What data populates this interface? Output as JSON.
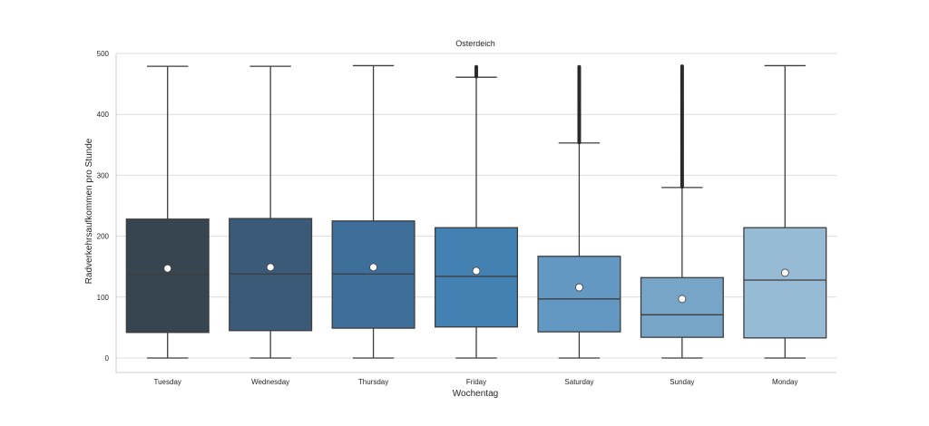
{
  "chart_data": {
    "type": "box",
    "title": "Osterdeich",
    "xlabel": "Wochentag",
    "ylabel": "Radverkehrsaufkommen pro Stunde",
    "ylim": [
      -25,
      500
    ],
    "yticks": [
      0,
      100,
      200,
      300,
      400,
      500
    ],
    "ytick_labels": [
      "0",
      "100",
      "200",
      "300",
      "400",
      "500"
    ],
    "grid": true,
    "categories": [
      "Tuesday",
      "Wednesday",
      "Thursday",
      "Friday",
      "Saturday",
      "Sunday",
      "Monday"
    ],
    "colors": [
      "#36454f",
      "#3a5a78",
      "#3e6f9b",
      "#4481b3",
      "#6298c1",
      "#76a5c8",
      "#97bad5"
    ],
    "boxes": [
      {
        "whislo": 0,
        "q1": 42,
        "med": 137,
        "q3": 228,
        "whishi": 479,
        "mean": 147,
        "fliers_range": null
      },
      {
        "whislo": 0,
        "q1": 45,
        "med": 138,
        "q3": 229,
        "whishi": 479,
        "mean": 149,
        "fliers_range": null
      },
      {
        "whislo": 0,
        "q1": 49,
        "med": 138,
        "q3": 225,
        "whishi": 480,
        "mean": 149,
        "fliers_range": null
      },
      {
        "whislo": 0,
        "q1": 51,
        "med": 134,
        "q3": 214,
        "whishi": 461,
        "mean": 143,
        "fliers_range": [
          462,
          479
        ]
      },
      {
        "whislo": 0,
        "q1": 43,
        "med": 97,
        "q3": 167,
        "whishi": 353,
        "mean": 116,
        "fliers_range": [
          354,
          479
        ]
      },
      {
        "whislo": 0,
        "q1": 34,
        "med": 71,
        "q3": 132,
        "whishi": 280,
        "mean": 97,
        "fliers_range": [
          281,
          479
        ]
      },
      {
        "whislo": 0,
        "q1": 33,
        "med": 128,
        "q3": 214,
        "whishi": 480,
        "mean": 140,
        "fliers_range": null
      }
    ]
  }
}
